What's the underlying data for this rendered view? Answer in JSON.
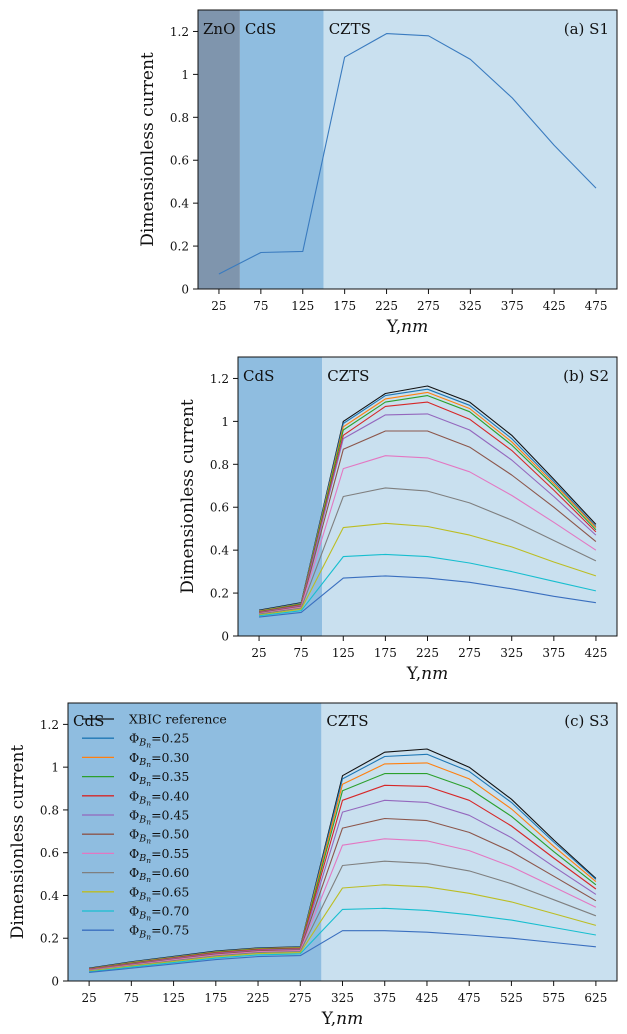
{
  "chart_data": [
    {
      "type": "line",
      "title": "(a) S1",
      "xlabel": "Y,nm",
      "ylabel": "Dimensionless current",
      "x": [
        25,
        75,
        125,
        175,
        225,
        275,
        325,
        375,
        425,
        475
      ],
      "x_ticks": [
        "25",
        "75",
        "125",
        "175",
        "225",
        "275",
        "325",
        "375",
        "425",
        "475"
      ],
      "xlim": [
        0,
        500
      ],
      "ylim": [
        0,
        1.3
      ],
      "y_ticks": [
        "0",
        "0.2",
        "0.4",
        "0.6",
        "0.8",
        "1",
        "1.2"
      ],
      "grid": false,
      "regions": [
        {
          "label": "ZnO",
          "from": 0,
          "to": 50,
          "color": "#7f95ad"
        },
        {
          "label": "CdS",
          "from": 50,
          "to": 150,
          "color": "#8fbde0"
        },
        {
          "label": "CZTS",
          "from": 150,
          "to": 500,
          "color": "#c9e0ef"
        }
      ],
      "series": [
        {
          "color": "#3a7bbf",
          "values": [
            0.07,
            0.17,
            0.175,
            1.08,
            1.19,
            1.18,
            1.07,
            0.89,
            0.67,
            0.47
          ]
        }
      ]
    },
    {
      "type": "line",
      "title": "(b) S2",
      "xlabel": "Y,nm",
      "ylabel": "Dimensionless current",
      "x": [
        25,
        75,
        125,
        175,
        225,
        275,
        325,
        375,
        425
      ],
      "x_ticks": [
        "25",
        "75",
        "125",
        "175",
        "225",
        "275",
        "325",
        "375",
        "425"
      ],
      "xlim": [
        0,
        450
      ],
      "ylim": [
        0,
        1.3
      ],
      "y_ticks": [
        "0",
        "0.2",
        "0.4",
        "0.6",
        "0.8",
        "1",
        "1.2"
      ],
      "grid": false,
      "regions": [
        {
          "label": "CdS",
          "from": 0,
          "to": 100,
          "color": "#8fbde0"
        },
        {
          "label": "CZTS",
          "from": 100,
          "to": 450,
          "color": "#c9e0ef"
        }
      ],
      "series": [
        {
          "color": "#111111",
          "values": [
            0.12,
            0.155,
            1.0,
            1.13,
            1.165,
            1.09,
            0.935,
            0.73,
            0.52
          ]
        },
        {
          "color": "#1f77b4",
          "values": [
            0.118,
            0.153,
            0.99,
            1.12,
            1.15,
            1.075,
            0.92,
            0.72,
            0.51
          ]
        },
        {
          "color": "#ff7f0e",
          "values": [
            0.116,
            0.15,
            0.975,
            1.105,
            1.135,
            1.06,
            0.905,
            0.71,
            0.505
          ]
        },
        {
          "color": "#2ca02c",
          "values": [
            0.114,
            0.148,
            0.96,
            1.09,
            1.12,
            1.045,
            0.89,
            0.7,
            0.495
          ]
        },
        {
          "color": "#d62728",
          "values": [
            0.112,
            0.145,
            0.935,
            1.07,
            1.09,
            1.01,
            0.865,
            0.68,
            0.485
          ]
        },
        {
          "color": "#9467bd",
          "values": [
            0.11,
            0.142,
            0.92,
            1.03,
            1.035,
            0.96,
            0.82,
            0.65,
            0.47
          ]
        },
        {
          "color": "#8c564b",
          "values": [
            0.108,
            0.138,
            0.87,
            0.955,
            0.955,
            0.88,
            0.75,
            0.6,
            0.44
          ]
        },
        {
          "color": "#e377c2",
          "values": [
            0.105,
            0.134,
            0.78,
            0.84,
            0.83,
            0.765,
            0.655,
            0.53,
            0.4
          ]
        },
        {
          "color": "#7f7f7f",
          "values": [
            0.102,
            0.13,
            0.65,
            0.69,
            0.675,
            0.62,
            0.54,
            0.445,
            0.35
          ]
        },
        {
          "color": "#bcbd22",
          "values": [
            0.098,
            0.125,
            0.505,
            0.525,
            0.51,
            0.47,
            0.415,
            0.345,
            0.28
          ]
        },
        {
          "color": "#17becf",
          "values": [
            0.094,
            0.118,
            0.37,
            0.38,
            0.37,
            0.34,
            0.3,
            0.255,
            0.21
          ]
        },
        {
          "color": "#3a6fbf",
          "values": [
            0.088,
            0.11,
            0.27,
            0.28,
            0.27,
            0.25,
            0.22,
            0.185,
            0.155
          ]
        }
      ]
    },
    {
      "type": "line",
      "title": "(c) S3",
      "xlabel": "Y,nm",
      "ylabel": "Dimensionless current",
      "x": [
        25,
        75,
        125,
        175,
        225,
        275,
        325,
        375,
        425,
        475,
        525,
        575,
        625
      ],
      "x_ticks": [
        "25",
        "75",
        "125",
        "175",
        "225",
        "275",
        "325",
        "375",
        "425",
        "475",
        "525",
        "575",
        "625"
      ],
      "xlim": [
        0,
        650
      ],
      "ylim": [
        0,
        1.3
      ],
      "y_ticks": [
        "0",
        "0.2",
        "0.4",
        "0.6",
        "0.8",
        "1",
        "1.2"
      ],
      "grid": false,
      "legend_position": "top-left",
      "regions": [
        {
          "label": "CdS",
          "from": 0,
          "to": 300,
          "color": "#8fbde0"
        },
        {
          "label": "CZTS",
          "from": 300,
          "to": 650,
          "color": "#c9e0ef"
        }
      ],
      "series": [
        {
          "name": "XBIC reference",
          "color": "#111111",
          "values": [
            0.06,
            0.09,
            0.115,
            0.14,
            0.155,
            0.16,
            0.96,
            1.07,
            1.085,
            1.0,
            0.85,
            0.66,
            0.48
          ]
        },
        {
          "name": "ΦBn=0.25",
          "color": "#1f77b4",
          "values": [
            0.058,
            0.088,
            0.113,
            0.138,
            0.153,
            0.158,
            0.945,
            1.05,
            1.06,
            0.98,
            0.835,
            0.65,
            0.475
          ]
        },
        {
          "name": "ΦBn=0.30",
          "color": "#ff7f0e",
          "values": [
            0.057,
            0.086,
            0.111,
            0.136,
            0.151,
            0.156,
            0.92,
            1.015,
            1.02,
            0.945,
            0.805,
            0.63,
            0.465
          ]
        },
        {
          "name": "ΦBn=0.35",
          "color": "#2ca02c",
          "values": [
            0.056,
            0.084,
            0.109,
            0.134,
            0.149,
            0.154,
            0.89,
            0.97,
            0.97,
            0.9,
            0.77,
            0.605,
            0.45
          ]
        },
        {
          "name": "ΦBn=0.40",
          "color": "#d62728",
          "values": [
            0.055,
            0.082,
            0.107,
            0.132,
            0.147,
            0.152,
            0.845,
            0.915,
            0.91,
            0.845,
            0.725,
            0.575,
            0.43
          ]
        },
        {
          "name": "ΦBn=0.45",
          "color": "#9467bd",
          "values": [
            0.054,
            0.08,
            0.105,
            0.129,
            0.144,
            0.149,
            0.79,
            0.845,
            0.835,
            0.775,
            0.67,
            0.535,
            0.405
          ]
        },
        {
          "name": "ΦBn=0.50",
          "color": "#8c564b",
          "values": [
            0.052,
            0.078,
            0.102,
            0.126,
            0.141,
            0.146,
            0.715,
            0.76,
            0.75,
            0.695,
            0.605,
            0.49,
            0.375
          ]
        },
        {
          "name": "ΦBn=0.55",
          "color": "#e377c2",
          "values": [
            0.05,
            0.075,
            0.099,
            0.122,
            0.137,
            0.142,
            0.635,
            0.665,
            0.655,
            0.61,
            0.535,
            0.44,
            0.345
          ]
        },
        {
          "name": "ΦBn=0.60",
          "color": "#7f7f7f",
          "values": [
            0.048,
            0.072,
            0.095,
            0.118,
            0.133,
            0.138,
            0.54,
            0.56,
            0.55,
            0.515,
            0.455,
            0.38,
            0.305
          ]
        },
        {
          "name": "ΦBn=0.65",
          "color": "#bcbd22",
          "values": [
            0.046,
            0.069,
            0.091,
            0.113,
            0.128,
            0.133,
            0.435,
            0.45,
            0.44,
            0.41,
            0.37,
            0.315,
            0.26
          ]
        },
        {
          "name": "ΦBn=0.70",
          "color": "#17becf",
          "values": [
            0.043,
            0.065,
            0.086,
            0.107,
            0.122,
            0.127,
            0.335,
            0.34,
            0.33,
            0.31,
            0.285,
            0.25,
            0.215
          ]
        },
        {
          "name": "ΦBn=0.75",
          "color": "#3a6fbf",
          "values": [
            0.04,
            0.06,
            0.08,
            0.1,
            0.114,
            0.119,
            0.235,
            0.235,
            0.228,
            0.215,
            0.2,
            0.18,
            0.16
          ]
        }
      ]
    }
  ]
}
